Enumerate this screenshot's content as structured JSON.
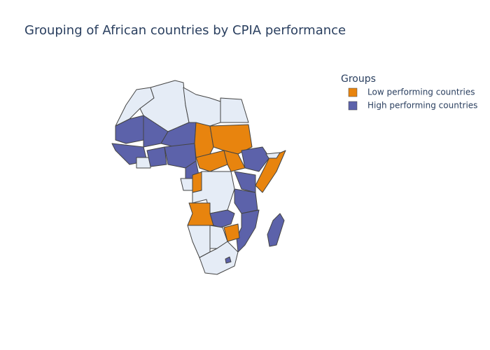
{
  "title": "Grouping of African countries by CPIA performance",
  "legend": {
    "title": "Groups"
  },
  "groups": [
    {
      "name": "Low performing countries",
      "color": "#e8840e"
    },
    {
      "name": "High performing countries",
      "color": "#5c62aa"
    }
  ]
}
